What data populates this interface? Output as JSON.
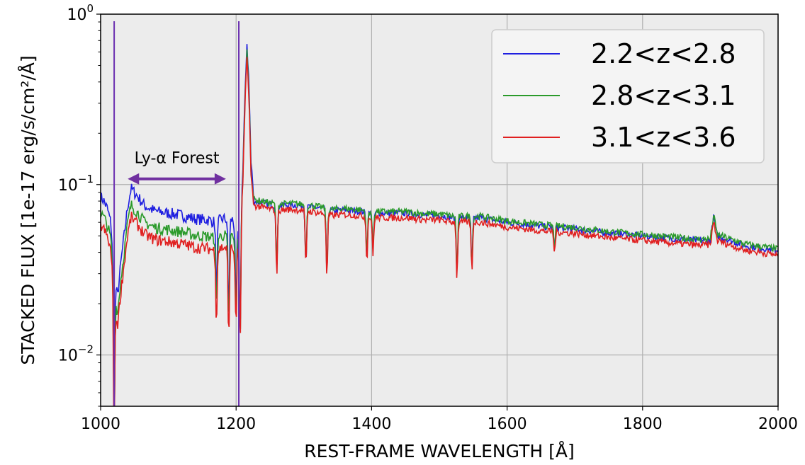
{
  "chart_data": {
    "type": "line",
    "title": "",
    "xlabel": "REST-FRAME WAVELENGTH [Å]",
    "ylabel": "STACKED FLUX [1e-17 erg/s/cm²/Å]",
    "xlim": [
      1000,
      2000
    ],
    "ylim": [
      0.005,
      1.0
    ],
    "yscale": "log",
    "grid": true,
    "legend_position": "top-right",
    "x_ticks": [
      "1000",
      "1200",
      "1400",
      "1600",
      "1800",
      "2000"
    ],
    "y_ticks": [
      {
        "base": "10",
        "exp": "0",
        "value": 1.0
      },
      {
        "base": "10",
        "exp": "−1",
        "value": 0.1
      },
      {
        "base": "10",
        "exp": "−2",
        "value": 0.01
      }
    ],
    "series": [
      {
        "name": "2.2<z<2.8",
        "color": "#1f1fe0",
        "scale": 1.0,
        "forest_scale": 1.0
      },
      {
        "name": "2.8<z<3.1",
        "color": "#2a9a2a",
        "scale": 1.02,
        "forest_scale": 0.8
      },
      {
        "name": "3.1<z<3.6",
        "color": "#e02020",
        "scale": 0.94,
        "forest_scale": 0.68
      }
    ],
    "continuum": [
      [
        1000,
        0.085
      ],
      [
        1005,
        0.08
      ],
      [
        1010,
        0.072
      ],
      [
        1015,
        0.06
      ],
      [
        1020,
        0.03
      ],
      [
        1025,
        0.022
      ],
      [
        1030,
        0.035
      ],
      [
        1040,
        0.075
      ],
      [
        1045,
        0.095
      ],
      [
        1055,
        0.085
      ],
      [
        1065,
        0.075
      ],
      [
        1080,
        0.07
      ],
      [
        1100,
        0.068
      ],
      [
        1120,
        0.066
      ],
      [
        1140,
        0.063
      ],
      [
        1160,
        0.062
      ],
      [
        1170,
        0.06
      ],
      [
        1180,
        0.063
      ],
      [
        1195,
        0.062
      ],
      [
        1205,
        0.045
      ],
      [
        1210,
        0.11
      ],
      [
        1213,
        0.3
      ],
      [
        1216,
        0.6
      ],
      [
        1219,
        0.35
      ],
      [
        1222,
        0.12
      ],
      [
        1226,
        0.08
      ],
      [
        1240,
        0.078
      ],
      [
        1260,
        0.075
      ],
      [
        1280,
        0.076
      ],
      [
        1300,
        0.075
      ],
      [
        1320,
        0.073
      ],
      [
        1340,
        0.07
      ],
      [
        1360,
        0.071
      ],
      [
        1380,
        0.07
      ],
      [
        1400,
        0.068
      ],
      [
        1420,
        0.068
      ],
      [
        1450,
        0.068
      ],
      [
        1480,
        0.066
      ],
      [
        1500,
        0.066
      ],
      [
        1520,
        0.064
      ],
      [
        1540,
        0.064
      ],
      [
        1560,
        0.064
      ],
      [
        1580,
        0.062
      ],
      [
        1600,
        0.06
      ],
      [
        1650,
        0.057
      ],
      [
        1700,
        0.055
      ],
      [
        1750,
        0.052
      ],
      [
        1800,
        0.05
      ],
      [
        1850,
        0.048
      ],
      [
        1880,
        0.047
      ],
      [
        1900,
        0.047
      ],
      [
        1905,
        0.065
      ],
      [
        1910,
        0.05
      ],
      [
        1950,
        0.044
      ],
      [
        2000,
        0.041
      ]
    ],
    "absorption_lines": [
      {
        "x": 1020,
        "depth": 0.02
      },
      {
        "x": 1171,
        "depth": 0.35
      },
      {
        "x": 1189,
        "depth": 0.25
      },
      {
        "x": 1200,
        "depth": 0.3
      },
      {
        "x": 1206,
        "depth": 0.2
      },
      {
        "x": 1260,
        "depth": 0.4
      },
      {
        "x": 1303,
        "depth": 0.45
      },
      {
        "x": 1334,
        "depth": 0.4
      },
      {
        "x": 1393,
        "depth": 0.55
      },
      {
        "x": 1402,
        "depth": 0.6
      },
      {
        "x": 1526,
        "depth": 0.45
      },
      {
        "x": 1548,
        "depth": 0.5
      },
      {
        "x": 1670,
        "depth": 0.75
      }
    ],
    "vertical_lines": [
      1020,
      1204
    ],
    "vertical_line_color": "#6a2fb0",
    "annotation": {
      "text": "Ly-α Forest",
      "x_from": 1040,
      "x_to": 1185,
      "y": 0.108,
      "color": "#7030a0"
    }
  }
}
